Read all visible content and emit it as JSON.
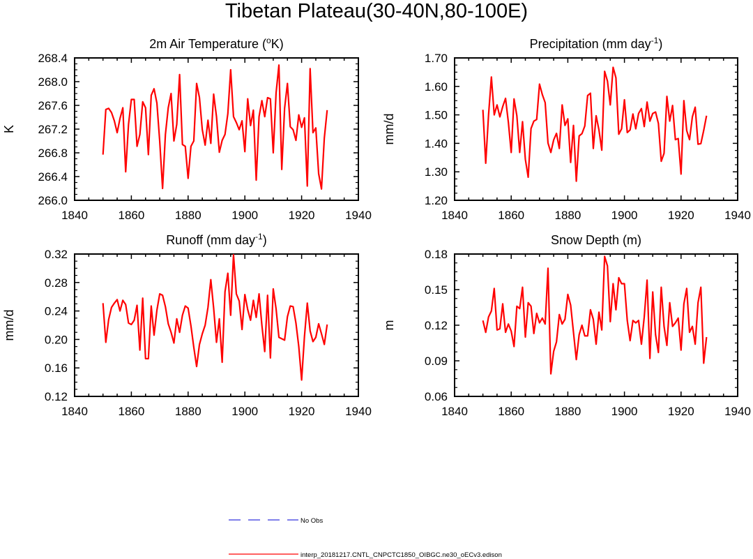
{
  "figure": {
    "title": "Tibetan Plateau(30-40N,80-100E)",
    "legend": [
      {
        "label": "No Obs",
        "color": "#3333dd",
        "style": "dashed"
      },
      {
        "label": "interp_20181217.CNTL_CNPCTC1850_OIBGC.ne30_oECv3.edison",
        "color": "#ff0000",
        "style": "solid"
      }
    ]
  },
  "colors": {
    "series": "#ff0000",
    "obs": "#3333dd",
    "axis": "#000000"
  },
  "chart_data": [
    {
      "type": "line",
      "title_main": "2m Air Temperature (",
      "title_sup": "o",
      "title_tail": "K)",
      "ylabel": "K",
      "xlim": [
        1840,
        1940
      ],
      "ylim": [
        266.0,
        268.4
      ],
      "xticks": [
        1840,
        1860,
        1880,
        1900,
        1920,
        1940
      ],
      "yticks": [
        266.0,
        266.4,
        266.8,
        267.2,
        267.6,
        268.0,
        268.4
      ],
      "ytick_labels": [
        "266.0",
        "266.4",
        "266.8",
        "267.2",
        "267.6",
        "268.0",
        "268.4"
      ],
      "x_start": 1850,
      "series": [
        {
          "name": "interp_20181217.CNTL_CNPCTC1850_OIBGC.ne30_oECv3.edison",
          "values": [
            266.77,
            267.53,
            267.55,
            267.48,
            267.34,
            267.14,
            267.38,
            267.56,
            266.48,
            267.28,
            267.7,
            267.7,
            266.91,
            267.11,
            267.66,
            267.56,
            266.77,
            267.77,
            267.88,
            267.64,
            266.99,
            266.2,
            267.11,
            267.56,
            267.8,
            267.0,
            267.28,
            268.12,
            266.94,
            266.91,
            266.37,
            266.91,
            267.0,
            267.97,
            267.73,
            267.19,
            266.93,
            267.35,
            266.96,
            267.79,
            267.41,
            266.81,
            267.01,
            267.11,
            267.46,
            268.2,
            267.41,
            267.31,
            267.19,
            267.34,
            266.82,
            267.71,
            267.26,
            267.52,
            266.34,
            267.41,
            267.68,
            267.41,
            267.73,
            267.71,
            266.8,
            267.81,
            268.28,
            266.52,
            267.55,
            267.97,
            267.24,
            267.19,
            267.01,
            267.44,
            267.23,
            267.39,
            266.24,
            268.22,
            267.14,
            267.22,
            266.45,
            266.19,
            267.05,
            267.52
          ]
        }
      ]
    },
    {
      "type": "line",
      "title_main": "Precipitation (mm day",
      "title_sup": "-1",
      "title_tail": ")",
      "ylabel": "mm/d",
      "xlim": [
        1840,
        1940
      ],
      "ylim": [
        1.2,
        1.7
      ],
      "xticks": [
        1840,
        1860,
        1880,
        1900,
        1920,
        1940
      ],
      "yticks": [
        1.2,
        1.3,
        1.4,
        1.5,
        1.6,
        1.7
      ],
      "ytick_labels": [
        "1.20",
        "1.30",
        "1.40",
        "1.50",
        "1.60",
        "1.70"
      ],
      "x_start": 1850,
      "series": [
        {
          "name": "interp_20181217.CNTL_CNPCTC1850_OIBGC.ne30_oECv3.edison",
          "values": [
            1.518,
            1.33,
            1.5,
            1.633,
            1.5,
            1.535,
            1.493,
            1.529,
            1.558,
            1.474,
            1.368,
            1.556,
            1.497,
            1.368,
            1.476,
            1.344,
            1.281,
            1.452,
            1.478,
            1.484,
            1.608,
            1.571,
            1.543,
            1.401,
            1.368,
            1.412,
            1.435,
            1.382,
            1.535,
            1.463,
            1.486,
            1.333,
            1.463,
            1.267,
            1.426,
            1.434,
            1.461,
            1.568,
            1.576,
            1.382,
            1.497,
            1.447,
            1.376,
            1.653,
            1.619,
            1.535,
            1.667,
            1.63,
            1.432,
            1.451,
            1.553,
            1.438,
            1.447,
            1.503,
            1.451,
            1.505,
            1.522,
            1.459,
            1.545,
            1.478,
            1.505,
            1.51,
            1.47,
            1.337,
            1.365,
            1.565,
            1.478,
            1.533,
            1.413,
            1.417,
            1.292,
            1.55,
            1.445,
            1.413,
            1.493,
            1.527,
            1.397,
            1.399,
            1.445,
            1.497
          ]
        }
      ]
    },
    {
      "type": "line",
      "title_main": "Runoff (mm day",
      "title_sup": "-1",
      "title_tail": ")",
      "ylabel": "mm/d",
      "xlim": [
        1840,
        1940
      ],
      "ylim": [
        0.12,
        0.32
      ],
      "xticks": [
        1840,
        1860,
        1880,
        1900,
        1920,
        1940
      ],
      "yticks": [
        0.12,
        0.16,
        0.2,
        0.24,
        0.28,
        0.32
      ],
      "ytick_labels": [
        "0.12",
        "0.16",
        "0.20",
        "0.24",
        "0.28",
        "0.32"
      ],
      "x_start": 1850,
      "series": [
        {
          "name": "interp_20181217.CNTL_CNPCTC1850_OIBGC.ne30_oECv3.edison",
          "values": [
            0.251,
            0.196,
            0.228,
            0.245,
            0.251,
            0.256,
            0.24,
            0.255,
            0.249,
            0.223,
            0.221,
            0.227,
            0.248,
            0.185,
            0.258,
            0.173,
            0.173,
            0.247,
            0.206,
            0.241,
            0.264,
            0.262,
            0.246,
            0.222,
            0.21,
            0.195,
            0.229,
            0.21,
            0.234,
            0.247,
            0.244,
            0.219,
            0.189,
            0.162,
            0.193,
            0.208,
            0.22,
            0.245,
            0.284,
            0.244,
            0.196,
            0.229,
            0.168,
            0.267,
            0.293,
            0.234,
            0.319,
            0.264,
            0.254,
            0.214,
            0.263,
            0.242,
            0.227,
            0.255,
            0.231,
            0.264,
            0.22,
            0.183,
            0.262,
            0.174,
            0.271,
            0.243,
            0.203,
            0.201,
            0.199,
            0.232,
            0.247,
            0.246,
            0.223,
            0.19,
            0.143,
            0.204,
            0.251,
            0.212,
            0.197,
            0.203,
            0.222,
            0.208,
            0.193,
            0.221
          ]
        }
      ]
    },
    {
      "type": "line",
      "title_main": "Snow Depth (m)",
      "title_sup": "",
      "title_tail": "",
      "ylabel": "m",
      "xlim": [
        1840,
        1940
      ],
      "ylim": [
        0.06,
        0.18
      ],
      "xticks": [
        1840,
        1860,
        1880,
        1900,
        1920,
        1940
      ],
      "yticks": [
        0.06,
        0.09,
        0.12,
        0.15,
        0.18
      ],
      "ytick_labels": [
        "0.06",
        "0.09",
        "0.12",
        "0.15",
        "0.18"
      ],
      "x_start": 1850,
      "series": [
        {
          "name": "interp_20181217.CNTL_CNPCTC1850_OIBGC.ne30_oECv3.edison",
          "values": [
            0.124,
            0.114,
            0.127,
            0.132,
            0.151,
            0.116,
            0.117,
            0.138,
            0.114,
            0.121,
            0.115,
            0.102,
            0.136,
            0.134,
            0.152,
            0.11,
            0.139,
            0.136,
            0.113,
            0.13,
            0.122,
            0.126,
            0.121,
            0.168,
            0.079,
            0.098,
            0.106,
            0.129,
            0.121,
            0.125,
            0.146,
            0.137,
            0.114,
            0.091,
            0.112,
            0.12,
            0.111,
            0.111,
            0.133,
            0.125,
            0.104,
            0.131,
            0.116,
            0.178,
            0.17,
            0.123,
            0.155,
            0.133,
            0.16,
            0.155,
            0.155,
            0.124,
            0.107,
            0.124,
            0.122,
            0.124,
            0.104,
            0.127,
            0.158,
            0.092,
            0.148,
            0.112,
            0.097,
            0.152,
            0.119,
            0.103,
            0.139,
            0.119,
            0.122,
            0.126,
            0.099,
            0.138,
            0.151,
            0.114,
            0.119,
            0.104,
            0.139,
            0.152,
            0.088,
            0.11
          ]
        }
      ]
    }
  ]
}
